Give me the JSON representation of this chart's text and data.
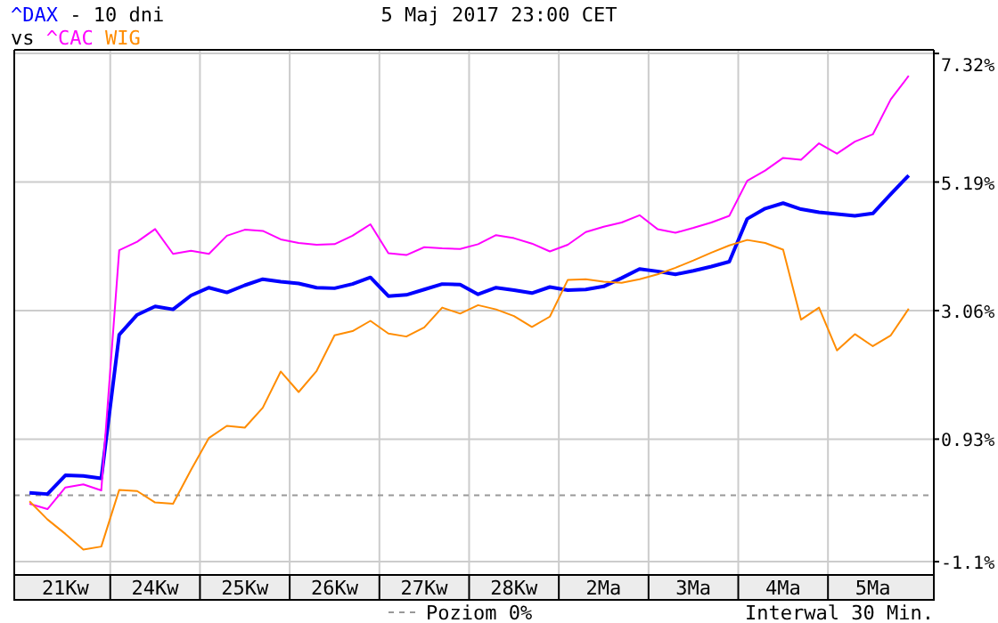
{
  "chart_data": {
    "type": "line",
    "title": "5 Maj 2017 23:00 CET",
    "subtitle": "- 10 dni",
    "annotations": [
      "vs",
      "Interwal 30 Min."
    ],
    "categories": [
      null,
      null,
      "21Kw",
      null,
      null,
      null,
      null,
      "24Kw",
      null,
      null,
      null,
      null,
      "25Kw",
      null,
      null,
      null,
      null,
      "26Kw",
      null,
      null,
      null,
      null,
      "27Kw",
      null,
      null,
      null,
      null,
      "28Kw",
      null,
      null,
      null,
      null,
      "2Ma",
      null,
      null,
      null,
      null,
      "3Ma",
      null,
      null,
      null,
      null,
      "4Ma",
      null,
      null,
      null,
      null,
      "5Ma",
      null,
      null
    ],
    "ylim": [
      -1.32,
      7.38
    ],
    "yticks": [
      {
        "value": 7.32,
        "label": "7.32%"
      },
      {
        "value": 5.19,
        "label": "5.19%"
      },
      {
        "value": 3.06,
        "label": "3.06%"
      },
      {
        "value": 0.93,
        "label": "0.93%"
      },
      {
        "value": -1.1,
        "label": "-1.1%"
      }
    ],
    "grid": true,
    "legend": "bottom",
    "line_style": "solid",
    "ref_lines": [
      {
        "axis": "y",
        "value": 0,
        "label": "Poziom 0%",
        "color": "#999999",
        "line_style": "dashed"
      }
    ],
    "series": [
      {
        "name": "^DAX",
        "color": "#0000ff",
        "values": [
          0.04,
          0.02,
          0.33,
          0.32,
          0.28,
          2.66,
          2.99,
          3.13,
          3.08,
          3.31,
          3.44,
          3.36,
          3.48,
          3.58,
          3.54,
          3.51,
          3.44,
          3.43,
          3.5,
          3.61,
          3.3,
          3.32,
          3.41,
          3.5,
          3.49,
          3.33,
          3.44,
          3.4,
          3.35,
          3.45,
          3.4,
          3.41,
          3.46,
          3.6,
          3.75,
          3.71,
          3.66,
          3.72,
          3.79,
          3.87,
          4.58,
          4.75,
          4.84,
          4.74,
          4.69,
          4.66,
          4.63,
          4.67,
          4.99,
          5.3
        ]
      },
      {
        "name": "^CAC",
        "color": "#ff00ff",
        "values": [
          -0.14,
          -0.23,
          0.13,
          0.18,
          0.08,
          4.06,
          4.2,
          4.41,
          4.0,
          4.05,
          4.0,
          4.3,
          4.4,
          4.38,
          4.24,
          4.18,
          4.15,
          4.16,
          4.3,
          4.49,
          4.01,
          3.98,
          4.11,
          4.09,
          4.08,
          4.16,
          4.31,
          4.26,
          4.17,
          4.04,
          4.15,
          4.36,
          4.45,
          4.52,
          4.64,
          4.41,
          4.35,
          4.43,
          4.52,
          4.63,
          5.21,
          5.38,
          5.59,
          5.56,
          5.83,
          5.66,
          5.86,
          5.98,
          6.56,
          6.95
        ]
      },
      {
        "name": "WIG",
        "color": "#ff8c00",
        "values": [
          -0.1,
          -0.4,
          -0.64,
          -0.9,
          -0.85,
          0.09,
          0.07,
          -0.12,
          -0.14,
          0.42,
          0.95,
          1.15,
          1.12,
          1.45,
          2.05,
          1.71,
          2.06,
          2.65,
          2.72,
          2.89,
          2.68,
          2.63,
          2.78,
          3.11,
          3.01,
          3.15,
          3.08,
          2.97,
          2.79,
          2.96,
          3.57,
          3.58,
          3.54,
          3.52,
          3.58,
          3.66,
          3.77,
          3.89,
          4.02,
          4.14,
          4.23,
          4.18,
          4.07,
          2.91,
          3.11,
          2.4,
          2.67,
          2.47,
          2.65,
          3.09
        ]
      }
    ]
  }
}
